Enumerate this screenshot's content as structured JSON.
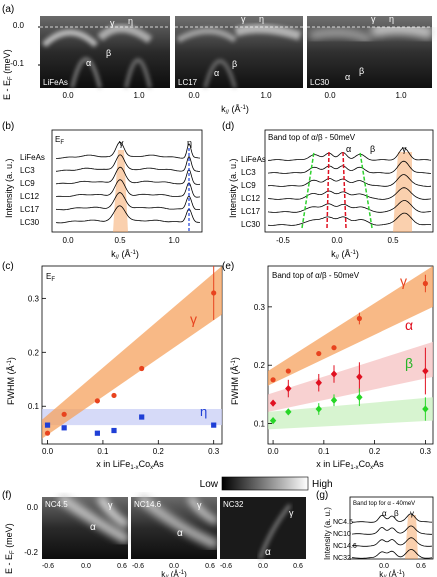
{
  "panels": {
    "a": {
      "letter": "(a)",
      "ylabel": "E - E",
      "ylabel_sub": "F",
      "ylabel_unit": " (meV)",
      "xlabel": "k",
      "xlabel_sub": "//",
      "xlabel_unit": " (Å",
      "xlabel_exp": "-1",
      "xlabel_end": ")",
      "yticks": [
        "0.0",
        "-0.1"
      ],
      "xticks": [
        "0.0",
        "1.0"
      ],
      "images": [
        {
          "label": "LiFeAs",
          "bands": [
            "α",
            "β",
            "γ",
            "η"
          ]
        },
        {
          "label": "LC17",
          "bands": [
            "α",
            "β",
            "γ",
            "η"
          ]
        },
        {
          "label": "LC30",
          "bands": [
            "α",
            "β",
            "γ",
            "η"
          ]
        }
      ]
    },
    "b": {
      "letter": "(b)",
      "ylabel": "Intensity (a. u.)",
      "top_label": "E",
      "top_label_sub": "F",
      "traces": [
        "LiFeAs",
        "LC3",
        "LC9",
        "LC12",
        "LC17",
        "LC30"
      ],
      "peaks": [
        "γ",
        "η"
      ],
      "xticks": [
        "0.0",
        "0.5",
        "1.0"
      ]
    },
    "c": {
      "letter": "(c)",
      "corner_label": "E",
      "corner_label_sub": "F",
      "ylabel": "FWHM (Å",
      "ylabel_exp": "-1",
      "ylabel_end": ")",
      "xlabel": "x in LiFe",
      "xlabel_mid": "Co",
      "xlabel_end": "As",
      "xlabel_sub1": "1-x",
      "xlabel_sub2": "x",
      "yticks": [
        "0.1",
        "0.2",
        "0.3"
      ],
      "xticks": [
        "0.0",
        "0.1",
        "0.2",
        "0.3"
      ],
      "series_labels": [
        "γ",
        "η"
      ]
    },
    "d": {
      "letter": "(d)",
      "title": "Band top of α/β - 50meV",
      "ylabel": "Intensity (a. u.)",
      "traces": [
        "LiFeAs",
        "LC3",
        "LC9",
        "LC12",
        "LC17",
        "LC30"
      ],
      "peaks": [
        "α",
        "β",
        "γ"
      ],
      "xticks": [
        "-0.5",
        "0.0",
        "0.5"
      ]
    },
    "e": {
      "letter": "(e)",
      "title": "Band top of α/β - 50meV",
      "ylabel": "FWHM (Å",
      "ylabel_exp": "-1",
      "ylabel_end": ")",
      "xlabel": "x in LiFe",
      "xlabel_mid": "Co",
      "xlabel_end": "As",
      "xlabel_sub1": "1-x",
      "xlabel_sub2": "x",
      "yticks": [
        "0.1",
        "0.2",
        "0.3"
      ],
      "xticks": [
        "0.0",
        "0.1",
        "0.2",
        "0.3"
      ],
      "series_labels": [
        "γ",
        "α",
        "β"
      ]
    },
    "f": {
      "letter": "(f)",
      "ylabel": "E - E",
      "ylabel_sub": "F",
      "ylabel_unit": " (meV)",
      "xlabel": "k",
      "xlabel_sub": "//",
      "xlabel_unit": " (Å",
      "xlabel_exp": "-1",
      "xlabel_end": ")",
      "yticks": [
        "0.0",
        "-0.2"
      ],
      "xticks": [
        "-0.6",
        "0.0",
        "0.6"
      ],
      "images": [
        {
          "label": "NC4.5",
          "bands": [
            "α",
            "γ"
          ]
        },
        {
          "label": "NC14.6",
          "bands": [
            "α",
            "γ"
          ]
        },
        {
          "label": "NC32",
          "bands": [
            "α",
            "γ"
          ]
        }
      ]
    },
    "g": {
      "letter": "(g)",
      "title": "Band top for α - 40meV",
      "ylabel": "Intensity (a. u.)",
      "traces": [
        "NC4.5",
        "NC10",
        "NC14.6",
        "NC32"
      ],
      "peaks": [
        "α",
        "β",
        "γ"
      ],
      "xticks": [
        "0.0",
        "0.6"
      ]
    }
  },
  "colorbar": {
    "low": "Low",
    "high": "High"
  },
  "colors": {
    "gamma": "#f5a25d",
    "gamma_marker": "#e8431e",
    "eta_band": "#c8cdf5",
    "eta_marker": "#1f3fd6",
    "alpha_band": "#f6c1c1",
    "alpha_marker": "#e01020",
    "beta_band": "#c9f0c0",
    "beta_marker": "#27d627",
    "text_gamma": "#e8431e",
    "text_eta": "#1f3fd6",
    "text_alpha": "#e01020",
    "text_beta": "#27b427"
  },
  "chart_data": [
    {
      "type": "scatter",
      "panel": "c",
      "xlabel": "x in LiFe1-xCoxAs",
      "ylabel": "FWHM (Å-1)",
      "xlim": [
        -0.01,
        0.315
      ],
      "ylim": [
        0.03,
        0.36
      ],
      "series": [
        {
          "name": "γ",
          "x": [
            0.0,
            0.03,
            0.09,
            0.12,
            0.17,
            0.3
          ],
          "y": [
            0.05,
            0.085,
            0.11,
            0.12,
            0.17,
            0.31
          ],
          "yerr": [
            0,
            0,
            0,
            0,
            0,
            0.05
          ]
        },
        {
          "name": "η",
          "x": [
            0.0,
            0.03,
            0.09,
            0.12,
            0.17,
            0.3
          ],
          "y": [
            0.065,
            0.06,
            0.05,
            0.055,
            0.08,
            0.065
          ]
        }
      ]
    },
    {
      "type": "scatter",
      "panel": "e",
      "xlabel": "x in LiFe1-xCoxAs",
      "ylabel": "FWHM (Å-1)",
      "xlim": [
        -0.01,
        0.315
      ],
      "ylim": [
        0.065,
        0.37
      ],
      "series": [
        {
          "name": "γ",
          "x": [
            0.0,
            0.03,
            0.09,
            0.12,
            0.17,
            0.3
          ],
          "y": [
            0.175,
            0.19,
            0.22,
            0.23,
            0.28,
            0.34
          ],
          "yerr": [
            0,
            0,
            0,
            0,
            0.01,
            0.015
          ]
        },
        {
          "name": "α",
          "x": [
            0.0,
            0.03,
            0.09,
            0.12,
            0.17,
            0.3
          ],
          "y": [
            0.135,
            0.16,
            0.17,
            0.185,
            0.18,
            0.19
          ],
          "yerr": [
            0,
            0.015,
            0.015,
            0.015,
            0.025,
            0.04
          ]
        },
        {
          "name": "β",
          "x": [
            0.0,
            0.03,
            0.09,
            0.12,
            0.17,
            0.3
          ],
          "y": [
            0.105,
            0.12,
            0.125,
            0.14,
            0.145,
            0.125
          ],
          "yerr": [
            0,
            0,
            0.01,
            0.01,
            0.015,
            0.02
          ]
        }
      ]
    }
  ]
}
